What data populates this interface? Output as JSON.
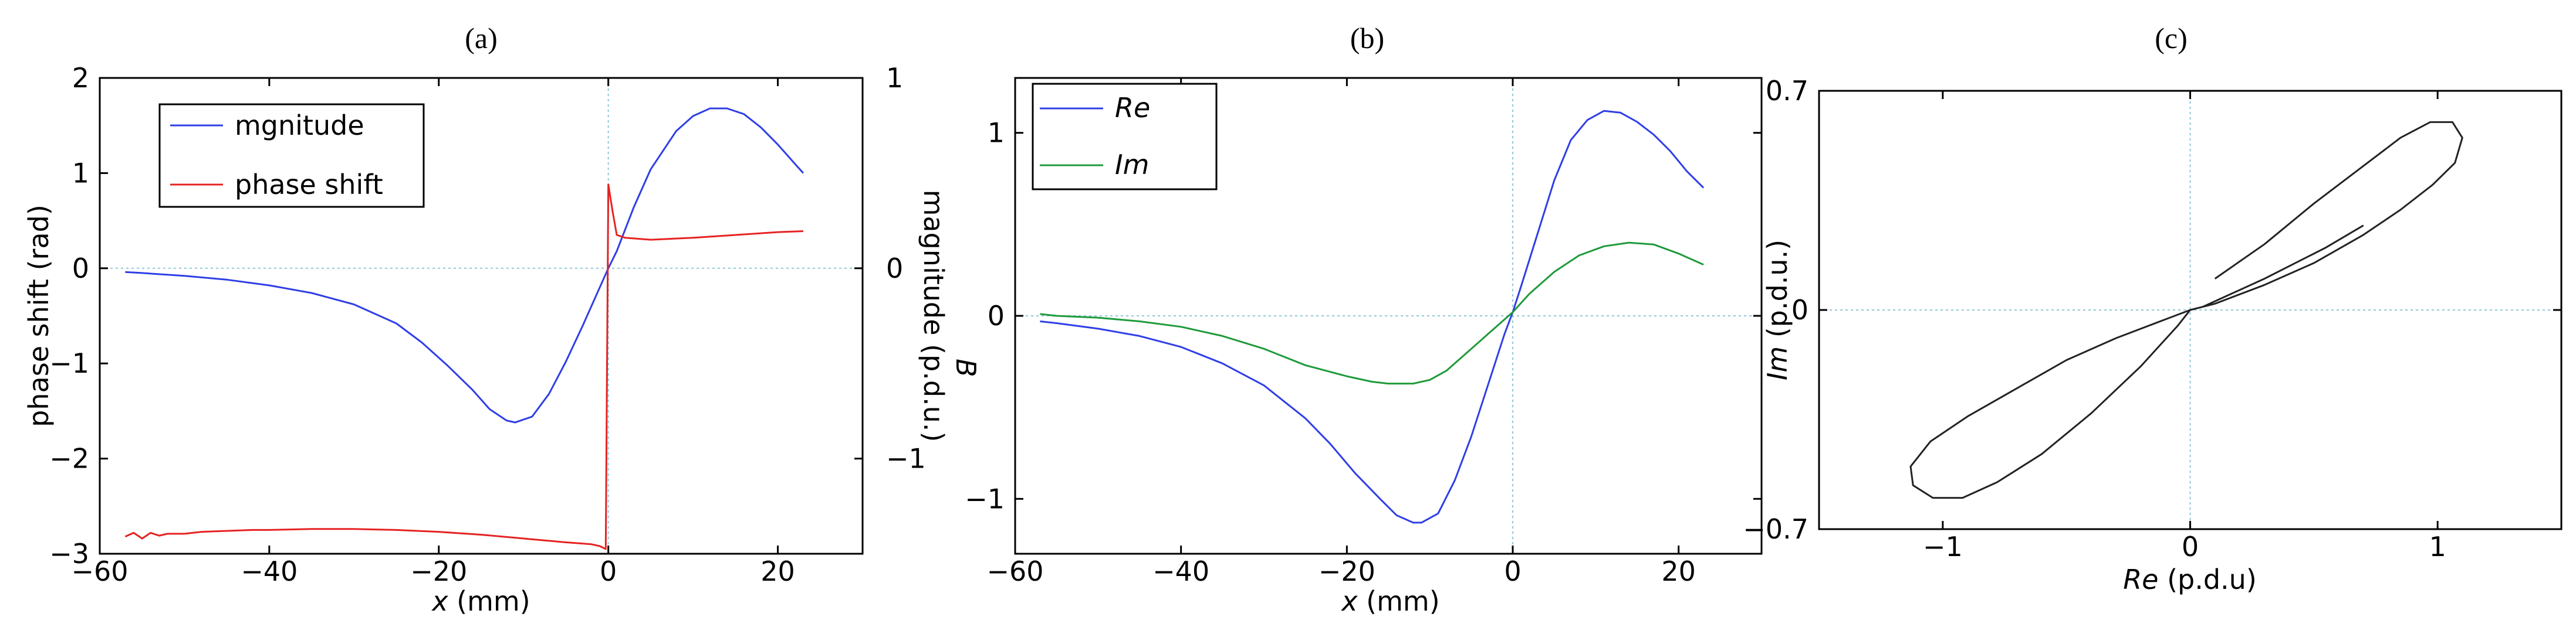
{
  "chart_data": [
    {
      "panel_label": "(a)",
      "type": "line",
      "title": "",
      "xlabel": "x (mm)",
      "xlabel_italic": "x",
      "xlabel_rest": " (mm)",
      "ylabel": "phase shift (rad)",
      "y2label": "magnitude (p.d.u.)",
      "y2label_italic": "B",
      "xlim": [
        -60,
        30
      ],
      "ylim": [
        -3,
        2
      ],
      "y2lim": [
        -1.5,
        1
      ],
      "xticks": [
        -60,
        -40,
        -20,
        0,
        20
      ],
      "yticks": [
        2,
        1,
        0,
        -1,
        -2,
        -3
      ],
      "y2ticks": [
        1,
        0,
        -1
      ],
      "legend": {
        "position": "top-left",
        "entries": [
          "mgnitude",
          "phase shift"
        ]
      },
      "series": [
        {
          "name": "mgnitude",
          "axis": "right",
          "color": "#2f3ee6",
          "points": [
            [
              -57,
              -0.02
            ],
            [
              -55,
              -0.025
            ],
            [
              -50,
              -0.04
            ],
            [
              -45,
              -0.06
            ],
            [
              -40,
              -0.09
            ],
            [
              -35,
              -0.13
            ],
            [
              -30,
              -0.19
            ],
            [
              -25,
              -0.29
            ],
            [
              -22,
              -0.39
            ],
            [
              -19,
              -0.51
            ],
            [
              -16,
              -0.64
            ],
            [
              -14,
              -0.74
            ],
            [
              -12,
              -0.8
            ],
            [
              -11,
              -0.81
            ],
            [
              -9,
              -0.78
            ],
            [
              -7,
              -0.66
            ],
            [
              -5,
              -0.49
            ],
            [
              -3,
              -0.3
            ],
            [
              -1,
              -0.1
            ],
            [
              0,
              0
            ],
            [
              1,
              0.09
            ],
            [
              3,
              0.32
            ],
            [
              5,
              0.52
            ],
            [
              8,
              0.72
            ],
            [
              10,
              0.8
            ],
            [
              12,
              0.84
            ],
            [
              14,
              0.84
            ],
            [
              16,
              0.81
            ],
            [
              18,
              0.74
            ],
            [
              20,
              0.65
            ],
            [
              22,
              0.55
            ],
            [
              23,
              0.5
            ]
          ]
        },
        {
          "name": "phase shift",
          "axis": "left",
          "color": "#e62222",
          "points": [
            [
              -57,
              -2.82
            ],
            [
              -56,
              -2.78
            ],
            [
              -55,
              -2.84
            ],
            [
              -54,
              -2.78
            ],
            [
              -53,
              -2.81
            ],
            [
              -52,
              -2.79
            ],
            [
              -50,
              -2.79
            ],
            [
              -48,
              -2.77
            ],
            [
              -45,
              -2.76
            ],
            [
              -42,
              -2.75
            ],
            [
              -40,
              -2.75
            ],
            [
              -35,
              -2.74
            ],
            [
              -30,
              -2.74
            ],
            [
              -25,
              -2.75
            ],
            [
              -20,
              -2.77
            ],
            [
              -15,
              -2.8
            ],
            [
              -10,
              -2.84
            ],
            [
              -5,
              -2.88
            ],
            [
              -2,
              -2.9
            ],
            [
              -1,
              -2.92
            ],
            [
              -0.3,
              -2.95
            ],
            [
              0,
              0.88
            ],
            [
              0.5,
              0.6
            ],
            [
              1,
              0.35
            ],
            [
              2,
              0.32
            ],
            [
              5,
              0.3
            ],
            [
              10,
              0.32
            ],
            [
              15,
              0.35
            ],
            [
              20,
              0.38
            ],
            [
              23,
              0.39
            ]
          ]
        }
      ]
    },
    {
      "panel_label": "(b)",
      "type": "line",
      "title": "",
      "xlabel": "x (mm)",
      "xlabel_italic": "x",
      "xlabel_rest": " (mm)",
      "ylabel": "",
      "xlim": [
        -60,
        30
      ],
      "ylim": [
        -1.3,
        1.3
      ],
      "xticks": [
        -60,
        -40,
        -20,
        0,
        20
      ],
      "yticks": [
        1,
        0,
        -1
      ],
      "legend": {
        "position": "top-left",
        "entries": [
          "Re",
          "Im"
        ]
      },
      "series": [
        {
          "name": "Re",
          "color": "#2f3ee6",
          "points": [
            [
              -57,
              -0.03
            ],
            [
              -55,
              -0.04
            ],
            [
              -50,
              -0.07
            ],
            [
              -45,
              -0.11
            ],
            [
              -40,
              -0.17
            ],
            [
              -35,
              -0.26
            ],
            [
              -30,
              -0.38
            ],
            [
              -25,
              -0.56
            ],
            [
              -22,
              -0.7
            ],
            [
              -19,
              -0.86
            ],
            [
              -16,
              -1.0
            ],
            [
              -14,
              -1.09
            ],
            [
              -12,
              -1.13
            ],
            [
              -11,
              -1.13
            ],
            [
              -9,
              -1.08
            ],
            [
              -7,
              -0.9
            ],
            [
              -5,
              -0.66
            ],
            [
              -3,
              -0.38
            ],
            [
              -1,
              -0.1
            ],
            [
              0,
              0.02
            ],
            [
              1,
              0.16
            ],
            [
              3,
              0.45
            ],
            [
              5,
              0.74
            ],
            [
              7,
              0.96
            ],
            [
              9,
              1.07
            ],
            [
              11,
              1.12
            ],
            [
              13,
              1.11
            ],
            [
              15,
              1.06
            ],
            [
              17,
              0.99
            ],
            [
              19,
              0.9
            ],
            [
              21,
              0.79
            ],
            [
              23,
              0.7
            ]
          ]
        },
        {
          "name": "Im",
          "color": "#1e9a3a",
          "points": [
            [
              -57,
              0.01
            ],
            [
              -55,
              0.0
            ],
            [
              -50,
              -0.01
            ],
            [
              -45,
              -0.03
            ],
            [
              -40,
              -0.06
            ],
            [
              -35,
              -0.11
            ],
            [
              -30,
              -0.18
            ],
            [
              -25,
              -0.27
            ],
            [
              -20,
              -0.33
            ],
            [
              -17,
              -0.36
            ],
            [
              -15,
              -0.37
            ],
            [
              -12,
              -0.37
            ],
            [
              -10,
              -0.35
            ],
            [
              -8,
              -0.3
            ],
            [
              -6,
              -0.22
            ],
            [
              -4,
              -0.14
            ],
            [
              -2,
              -0.06
            ],
            [
              0,
              0.02
            ],
            [
              2,
              0.12
            ],
            [
              5,
              0.24
            ],
            [
              8,
              0.33
            ],
            [
              11,
              0.38
            ],
            [
              14,
              0.4
            ],
            [
              17,
              0.39
            ],
            [
              20,
              0.34
            ],
            [
              23,
              0.28
            ]
          ]
        }
      ]
    },
    {
      "panel_label": "(c)",
      "type": "line",
      "title": "",
      "xlabel": "Re (p.d.u)",
      "xlabel_italic": "Re",
      "xlabel_rest": " (p.d.u)",
      "ylabel": "Im (p.d.u.)",
      "ylabel_italic": "Im",
      "ylabel_rest": " (p.d.u.)",
      "xlim": [
        -1.5,
        1.5
      ],
      "ylim": [
        -0.7,
        0.7
      ],
      "xticks": [
        -1,
        0,
        1
      ],
      "yticks": [
        0.7,
        0,
        -0.7
      ],
      "series": [
        {
          "name": "Re vs Im",
          "color": "#222222",
          "points": [
            [
              0.1,
              0.1
            ],
            [
              0.3,
              0.21
            ],
            [
              0.5,
              0.34
            ],
            [
              0.7,
              0.46
            ],
            [
              0.85,
              0.55
            ],
            [
              0.97,
              0.6
            ],
            [
              1.06,
              0.6
            ],
            [
              1.1,
              0.55
            ],
            [
              1.07,
              0.47
            ],
            [
              0.98,
              0.4
            ],
            [
              0.85,
              0.32
            ],
            [
              0.7,
              0.24
            ],
            [
              0.5,
              0.15
            ],
            [
              0.3,
              0.08
            ],
            [
              0.1,
              0.02
            ],
            [
              0,
              0
            ],
            [
              -0.1,
              -0.03
            ],
            [
              -0.3,
              -0.09
            ],
            [
              -0.5,
              -0.16
            ],
            [
              -0.7,
              -0.25
            ],
            [
              -0.9,
              -0.34
            ],
            [
              -1.05,
              -0.42
            ],
            [
              -1.13,
              -0.5
            ],
            [
              -1.12,
              -0.56
            ],
            [
              -1.04,
              -0.6
            ],
            [
              -0.92,
              -0.6
            ],
            [
              -0.78,
              -0.55
            ],
            [
              -0.6,
              -0.46
            ],
            [
              -0.4,
              -0.33
            ],
            [
              -0.2,
              -0.18
            ],
            [
              -0.05,
              -0.05
            ],
            [
              0,
              0
            ],
            [
              0.05,
              0.01
            ],
            [
              0.3,
              0.1
            ],
            [
              0.55,
              0.2
            ],
            [
              0.7,
              0.27
            ]
          ]
        }
      ]
    }
  ]
}
